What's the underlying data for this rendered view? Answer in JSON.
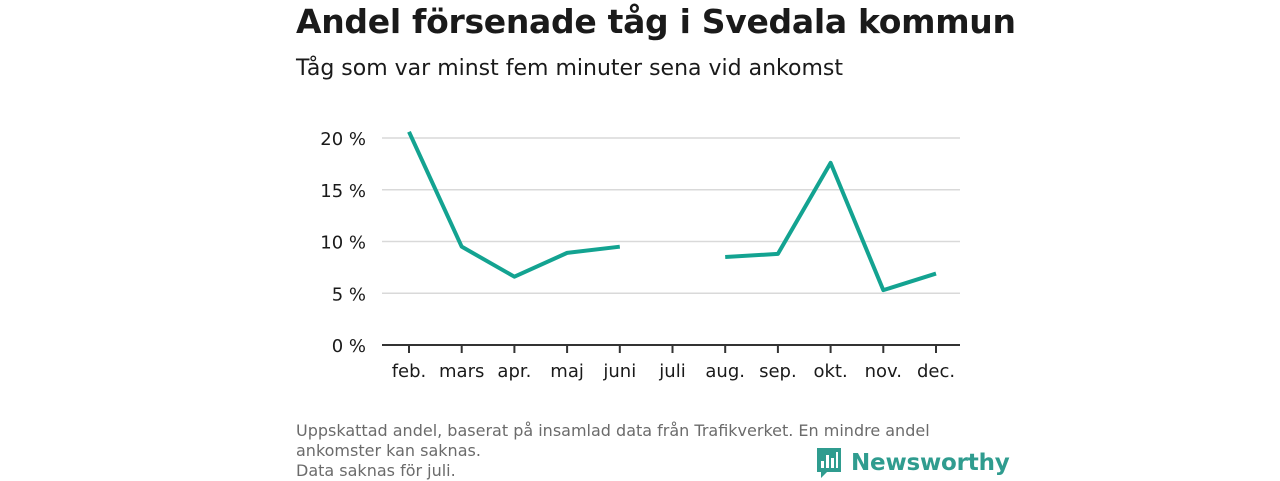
{
  "title": "Andel försenade tåg i Svedala kommun",
  "subtitle": "Tåg som var minst fem minuter sena vid ankomst",
  "footnote": {
    "line1": "Uppskattad andel, baserat på insamlad data från Trafikverket. En mindre andel",
    "line2": "ankomster kan saknas.",
    "line3": "Data saknas för juli."
  },
  "brand": {
    "name": "Newsworthy",
    "icon": "bar-chart-logo-icon",
    "color": "#2f9c8f"
  },
  "chart_data": {
    "type": "line",
    "title": "Andel försenade tåg i Svedala kommun",
    "subtitle": "Tåg som var minst fem minuter sena vid ankomst",
    "categories": [
      "feb.",
      "mars",
      "apr.",
      "maj",
      "juni",
      "juli",
      "aug.",
      "sep.",
      "okt.",
      "nov.",
      "dec."
    ],
    "series": [
      {
        "color": "#13a391",
        "values": [
          20.6,
          9.5,
          6.6,
          8.9,
          9.5,
          null,
          8.5,
          8.8,
          17.6,
          5.3,
          6.9
        ]
      }
    ],
    "yticks": [
      0,
      5,
      10,
      15,
      20
    ],
    "ytick_labels": [
      "0 %",
      "5 %",
      "10 %",
      "15 %",
      "20 %"
    ],
    "ylim": [
      0,
      20
    ],
    "grid": true,
    "legend": "none"
  }
}
